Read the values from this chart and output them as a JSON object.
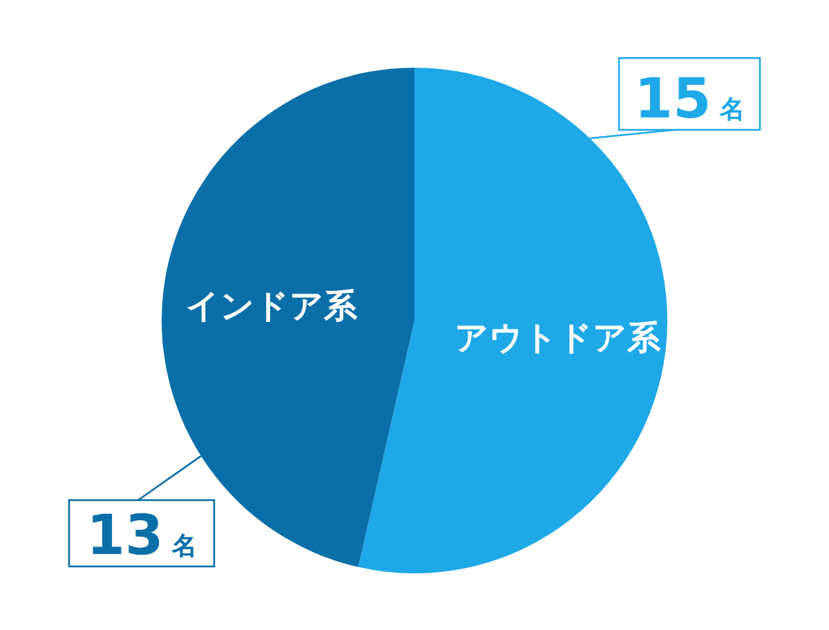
{
  "chart_data": {
    "type": "pie",
    "categories": [
      "アウトドア系",
      "インドア系"
    ],
    "values": [
      15,
      13
    ],
    "colors": [
      "#1ea8e8",
      "#0a6fa8"
    ],
    "value_labels": [
      "15名",
      "13名"
    ]
  }
}
